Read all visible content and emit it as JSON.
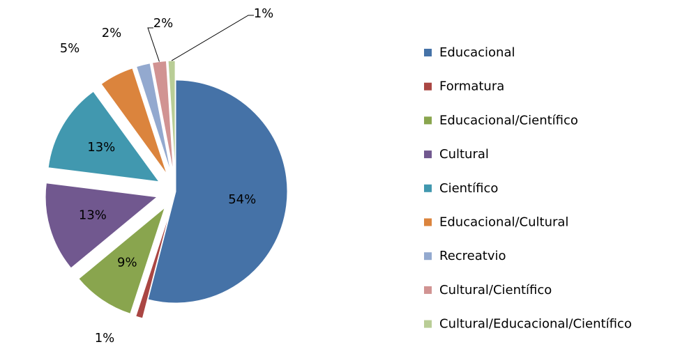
{
  "chart_data": {
    "type": "pie",
    "categories": [
      "Educacional",
      "Formatura",
      "Educacional/Científico",
      "Cultural",
      "Científico",
      "Educacional/Cultural",
      "Recreatvio",
      "Cultural/Científico",
      "Cultural/Educacional/Científico"
    ],
    "values": [
      54,
      1,
      9,
      13,
      13,
      5,
      2,
      2,
      1
    ],
    "value_labels": [
      "54%",
      "1%",
      "9%",
      "13%",
      "13%",
      "5%",
      "2%",
      "2%",
      "1%"
    ],
    "colors": [
      "#4572a7",
      "#aa4643",
      "#89a54e",
      "#71588f",
      "#4198af",
      "#db843d",
      "#93a9cf",
      "#d19392",
      "#b9cd96"
    ],
    "legend": "right"
  }
}
